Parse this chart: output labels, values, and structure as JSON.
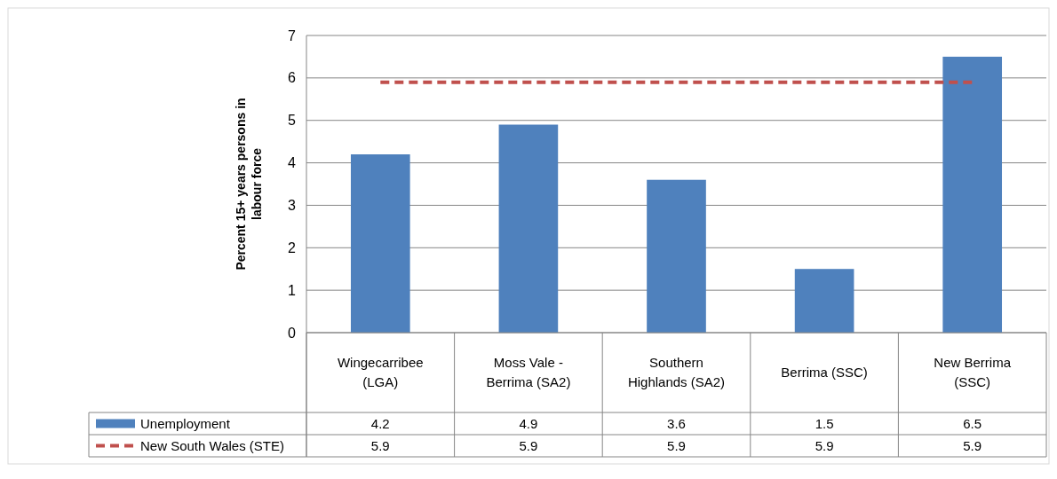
{
  "chart_data": {
    "type": "bar",
    "ylabel": "Percent 15+ years persons in labour force",
    "categories": [
      "Wingecarribee (LGA)",
      "Moss Vale - Berrima (SA2)",
      "Southern Highlands (SA2)",
      "Berrima (SSC)",
      "New Berrima (SSC)"
    ],
    "series": [
      {
        "name": "Unemployment",
        "color": "#4f81bd",
        "values": [
          4.2,
          4.9,
          3.6,
          1.5,
          6.5
        ]
      },
      {
        "name": "New South Wales (STE)",
        "type": "line",
        "color": "#c0504d",
        "line_style": "dashed",
        "values": [
          5.9,
          5.9,
          5.9,
          5.9,
          5.9
        ]
      }
    ],
    "ylim": [
      0,
      7
    ],
    "yticks": [
      0,
      1,
      2,
      3,
      4,
      5,
      6,
      7
    ],
    "grid": "y",
    "data_labels": true,
    "legend": "bottom"
  }
}
